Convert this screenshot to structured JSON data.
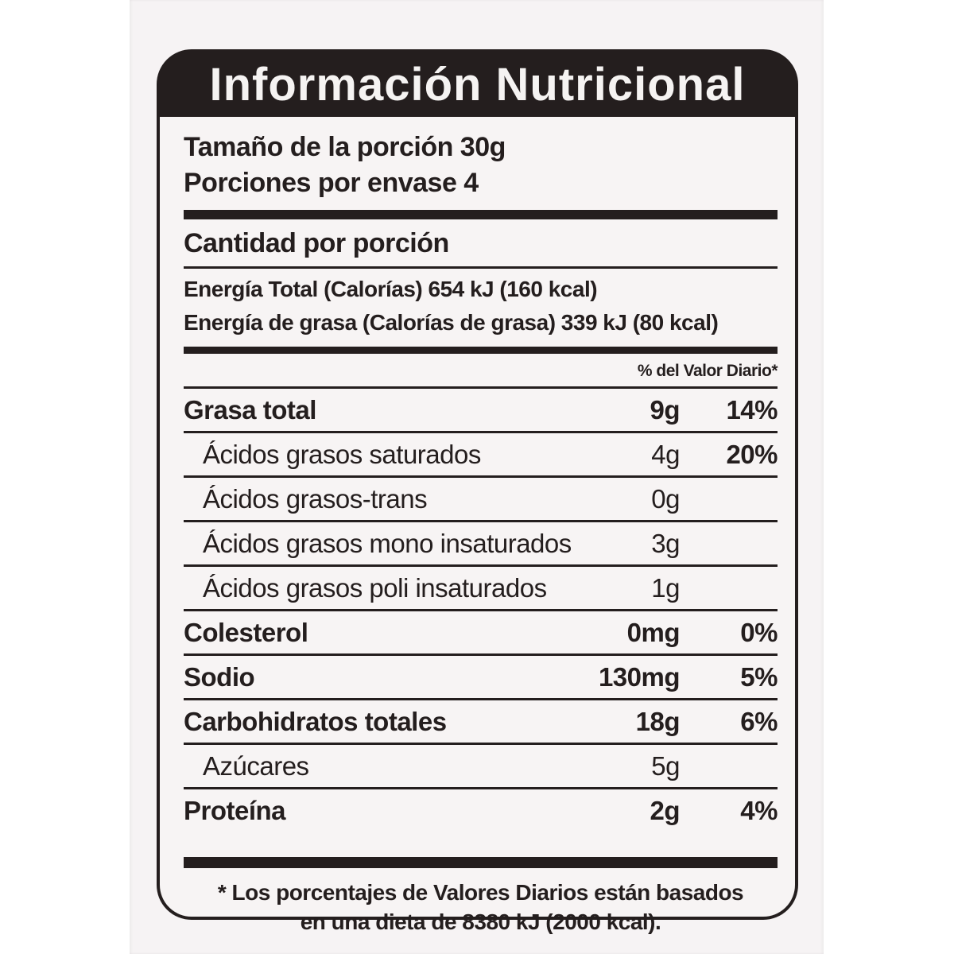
{
  "header": {
    "title": "Información Nutricional"
  },
  "serving": {
    "size": "Tamaño de la porción 30g",
    "servings_per_container": "Porciones por envase 4"
  },
  "amount_per_serving": {
    "heading": "Cantidad por porción",
    "energy_total": "Energía Total (Calorías) 654 kJ (160 kcal)",
    "energy_fat": "Energía de grasa (Calorías de grasa) 339 kJ (80 kcal)"
  },
  "daily_value_header": "% del Valor Diario*",
  "nutrients": [
    {
      "name": "Grasa total",
      "amount": "9g",
      "dv": "14%"
    },
    {
      "name": "Ácidos grasos saturados",
      "amount": "4g",
      "dv": "20%"
    },
    {
      "name": "Ácidos grasos-trans",
      "amount": "0g",
      "dv": ""
    },
    {
      "name": "Ácidos grasos mono insaturados",
      "amount": "3g",
      "dv": ""
    },
    {
      "name": "Ácidos grasos poli insaturados",
      "amount": "1g",
      "dv": ""
    },
    {
      "name": "Colesterol",
      "amount": "0mg",
      "dv": "0%"
    },
    {
      "name": "Sodio",
      "amount": "130mg",
      "dv": "5%"
    },
    {
      "name": "Carbohidratos totales",
      "amount": "18g",
      "dv": "6%"
    },
    {
      "name": "Azúcares",
      "amount": "5g",
      "dv": ""
    },
    {
      "name": "Proteína",
      "amount": "2g",
      "dv": "4%"
    }
  ],
  "footnote": {
    "line1": "* Los porcentajes de Valores Diarios están basados",
    "line2": "en una dieta de 8380 kJ (2000 kcal)."
  },
  "colors": {
    "ink": "#241e1e",
    "paper": "#f6f3f4",
    "page": "#ffffff",
    "title_text": "#f5f3f2"
  }
}
